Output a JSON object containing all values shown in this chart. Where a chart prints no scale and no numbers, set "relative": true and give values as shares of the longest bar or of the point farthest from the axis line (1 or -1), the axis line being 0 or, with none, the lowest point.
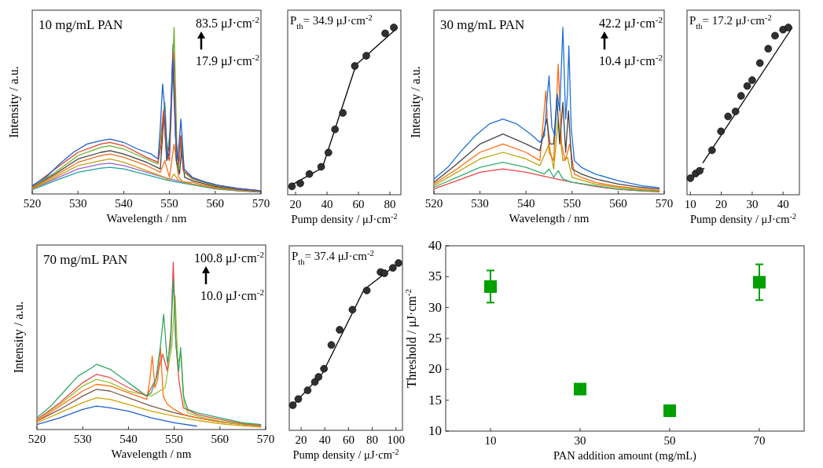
{
  "chart_data": [
    {
      "type": "line",
      "relative": true,
      "tick_labels": "x",
      "xlabel": "Wavelength / nm",
      "ylabel": "Intensity / a.u.",
      "xlim": [
        520,
        570
      ],
      "xticks": [
        520,
        530,
        540,
        550,
        560,
        570
      ],
      "annotations": [
        "10 mg/mL PAN",
        "83.5 μJ·cm$^{-2}$",
        "17.9 μJ·cm$^{-2}$"
      ],
      "series": [
        {
          "color": "#20a0a0",
          "x": [
            520,
            525,
            530,
            535,
            537,
            540,
            545,
            550,
            555,
            560,
            565,
            570
          ],
          "values": [
            0.025,
            0.08,
            0.13,
            0.155,
            0.16,
            0.15,
            0.115,
            0.08,
            0.055,
            0.03,
            0.018,
            0.01
          ]
        },
        {
          "color": "#a060d0",
          "x": [
            520,
            525,
            530,
            535,
            537,
            540,
            545,
            550,
            555,
            560,
            565,
            570
          ],
          "values": [
            0.03,
            0.09,
            0.15,
            0.18,
            0.185,
            0.17,
            0.13,
            0.09,
            0.06,
            0.035,
            0.02,
            0.012
          ]
        },
        {
          "color": "#c0a010",
          "x": [
            520,
            525,
            530,
            535,
            537,
            540,
            545,
            549,
            550,
            551,
            552,
            555,
            560,
            565,
            570
          ],
          "values": [
            0.03,
            0.1,
            0.17,
            0.2,
            0.21,
            0.19,
            0.14,
            0.1,
            0.08,
            0.12,
            0.08,
            0.06,
            0.035,
            0.022,
            0.013
          ]
        },
        {
          "color": "#f07020",
          "x": [
            520,
            525,
            530,
            535,
            537,
            540,
            545,
            548,
            549,
            550,
            551,
            552,
            553,
            555,
            560,
            565,
            570
          ],
          "values": [
            0.035,
            0.11,
            0.19,
            0.23,
            0.24,
            0.22,
            0.17,
            0.13,
            0.2,
            0.1,
            0.3,
            0.1,
            0.07,
            0.07,
            0.04,
            0.025,
            0.015
          ]
        },
        {
          "color": "#404040",
          "x": [
            520,
            525,
            530,
            535,
            537,
            540,
            545,
            548,
            548.8,
            549.4,
            550,
            550.8,
            551.5,
            552.2,
            552.7,
            553.3,
            555,
            560,
            565,
            570
          ],
          "values": [
            0.04,
            0.12,
            0.21,
            0.25,
            0.26,
            0.24,
            0.19,
            0.15,
            0.48,
            0.2,
            0.25,
            0.9,
            0.2,
            0.12,
            0.28,
            0.1,
            0.08,
            0.045,
            0.028,
            0.016
          ]
        },
        {
          "color": "#6ab023",
          "x": [
            520,
            525,
            530,
            535,
            537,
            540,
            545,
            547.5,
            548.5,
            549,
            549.5,
            550.3,
            551,
            551.6,
            552,
            552.6,
            553.2,
            555,
            560,
            565,
            570
          ],
          "values": [
            0.04,
            0.13,
            0.23,
            0.28,
            0.29,
            0.27,
            0.21,
            0.18,
            0.45,
            0.55,
            0.25,
            0.4,
            1,
            0.3,
            0.15,
            0.35,
            0.13,
            0.09,
            0.05,
            0.03,
            0.017
          ]
        },
        {
          "color": "#e03c31",
          "x": [
            520,
            525,
            530,
            535,
            537,
            540,
            545,
            547.5,
            548.2,
            548.7,
            549.3,
            550,
            550.8,
            551.5,
            552,
            552.4,
            553,
            555,
            560,
            565,
            570
          ],
          "values": [
            0.045,
            0.15,
            0.25,
            0.3,
            0.31,
            0.29,
            0.22,
            0.19,
            0.3,
            0.5,
            0.25,
            0.2,
            0.85,
            0.3,
            0.18,
            0.35,
            0.14,
            0.095,
            0.055,
            0.032,
            0.018
          ]
        },
        {
          "color": "#1f5fd0",
          "x": [
            520,
            523,
            526,
            529,
            532,
            535,
            537,
            540,
            543,
            546,
            547.5,
            548,
            548.5,
            549,
            549.5,
            550,
            550.7,
            551.3,
            551.8,
            552.5,
            553.2,
            555,
            558,
            561,
            565,
            570
          ],
          "values": [
            0.05,
            0.1,
            0.18,
            0.25,
            0.3,
            0.32,
            0.33,
            0.31,
            0.27,
            0.24,
            0.21,
            0.4,
            0.66,
            0.5,
            0.22,
            0.3,
            0.81,
            0.35,
            0.2,
            0.45,
            0.15,
            0.1,
            0.07,
            0.05,
            0.034,
            0.019
          ]
        }
      ]
    },
    {
      "type": "scatter",
      "relative": true,
      "tick_labels": "x",
      "xlabel": "Pump density / μJ·cm$^{-2}$",
      "xlim": [
        15,
        87
      ],
      "xticks": [
        20,
        40,
        60,
        80
      ],
      "annotations": [
        "P$_{th}$= 34.9 μJ·cm$^{-2}$"
      ],
      "series": [
        {
          "type": "line",
          "color": "#000000",
          "x": [
            17,
            37,
            58.5,
            85
          ],
          "values": [
            0.056,
            0.161,
            0.777,
            1
          ]
        },
        {
          "color": "#303030",
          "marker": "circle",
          "x": [
            17.7,
            23,
            28.8,
            36.3,
            40.9,
            45.1,
            50.1,
            57.7,
            65,
            77,
            82.5
          ],
          "values": [
            0.05,
            0.068,
            0.124,
            0.167,
            0.252,
            0.391,
            0.489,
            0.77,
            0.831,
            0.965,
            1
          ]
        }
      ]
    },
    {
      "type": "line",
      "relative": true,
      "tick_labels": "x",
      "xlabel": "Wavelength / nm",
      "ylabel": "Intensity / a.u.",
      "xlim": [
        520,
        570
      ],
      "xticks": [
        520,
        530,
        540,
        550,
        560,
        570
      ],
      "annotations": [
        "30 mg/mL PAN",
        "42.2 μJ·cm$^{-2}$",
        "10.4 μJ·cm$^{-2}$"
      ],
      "series": [
        {
          "color": "#e84545",
          "x": [
            520,
            525,
            530,
            535,
            540,
            545,
            550,
            555,
            560,
            565,
            569
          ],
          "values": [
            0.03,
            0.08,
            0.13,
            0.15,
            0.13,
            0.1,
            0.07,
            0.045,
            0.028,
            0.018,
            0.012
          ]
        },
        {
          "color": "#30b070",
          "x": [
            520,
            525,
            530,
            535,
            540,
            544,
            545,
            546,
            547,
            548,
            550,
            555,
            560,
            565,
            569
          ],
          "values": [
            0.04,
            0.1,
            0.16,
            0.19,
            0.16,
            0.12,
            0.15,
            0.1,
            0.14,
            0.09,
            0.07,
            0.05,
            0.03,
            0.02,
            0.015
          ]
        },
        {
          "color": "#b8a000",
          "x": [
            520,
            525,
            530,
            535,
            540,
            543,
            545,
            546,
            547,
            548,
            549,
            550,
            555,
            560,
            565,
            569
          ],
          "values": [
            0.05,
            0.13,
            0.21,
            0.25,
            0.21,
            0.17,
            0.3,
            0.15,
            0.45,
            0.2,
            0.22,
            0.1,
            0.06,
            0.04,
            0.025,
            0.018
          ]
        },
        {
          "color": "#ff6a10",
          "x": [
            520,
            525,
            530,
            535,
            540,
            543,
            544.3,
            545,
            546,
            547,
            547.7,
            548.5,
            549.5,
            550.5,
            552,
            555,
            560,
            565,
            569
          ],
          "values": [
            0.06,
            0.15,
            0.25,
            0.3,
            0.25,
            0.2,
            0.62,
            0.25,
            0.2,
            0.78,
            0.3,
            0.2,
            0.3,
            0.12,
            0.1,
            0.07,
            0.045,
            0.03,
            0.022
          ]
        },
        {
          "color": "#454545",
          "x": [
            520,
            525,
            530,
            535,
            540,
            543,
            544.5,
            545.2,
            546,
            546.7,
            547.3,
            548,
            548.6,
            549.2,
            550,
            552,
            555,
            560,
            565,
            569
          ],
          "values": [
            0.07,
            0.18,
            0.3,
            0.36,
            0.3,
            0.26,
            0.45,
            0.3,
            0.3,
            0.58,
            0.3,
            0.55,
            0.25,
            0.5,
            0.15,
            0.12,
            0.09,
            0.06,
            0.04,
            0.03
          ]
        },
        {
          "color": "#1f6fd8",
          "x": [
            520,
            523,
            526,
            529,
            532,
            535,
            538,
            541,
            543,
            544,
            544.5,
            545,
            545.6,
            546.3,
            546.8,
            547.3,
            548,
            548.6,
            549,
            549.3,
            549.8,
            550.5,
            552,
            555,
            560,
            565,
            569
          ],
          "values": [
            0.09,
            0.16,
            0.26,
            0.35,
            0.42,
            0.45,
            0.42,
            0.36,
            0.31,
            0.35,
            0.55,
            0.71,
            0.4,
            0.35,
            0.6,
            0.5,
            1,
            0.45,
            0.6,
            0.89,
            0.4,
            0.2,
            0.16,
            0.12,
            0.08,
            0.05,
            0.037
          ]
        }
      ]
    },
    {
      "type": "scatter",
      "relative": true,
      "tick_labels": "x",
      "xlabel": "Pump density / μJ·cm$^{-2}$",
      "xlim": [
        8.9,
        45.3
      ],
      "xticks": [
        10,
        20,
        30,
        40
      ],
      "annotations": [
        "P$_{th}$= 17.2 μJ·cm$^{-2}$"
      ],
      "series": [
        {
          "type": "line",
          "color": "#000000",
          "x": [
            10.5,
            14.5
          ],
          "values": [
            0.1,
            0.16
          ]
        },
        {
          "type": "line",
          "color": "#000000",
          "x": [
            14,
            43
          ],
          "values": [
            0.19,
            1
          ]
        },
        {
          "color": "#303030",
          "marker": "circle",
          "x": [
            10,
            11.7,
            13,
            17,
            19.9,
            22.2,
            24.6,
            26.4,
            28.4,
            30,
            32.5,
            35.2,
            37.4,
            40,
            41.7
          ],
          "values": [
            0.099,
            0.127,
            0.143,
            0.266,
            0.379,
            0.468,
            0.498,
            0.591,
            0.65,
            0.685,
            0.787,
            0.873,
            0.951,
            0.987,
            1
          ]
        }
      ]
    },
    {
      "type": "line",
      "relative": true,
      "tick_labels": "x",
      "xlabel": "Wavelength / nm",
      "ylabel": "Intensity / a.u.",
      "xlim": [
        520,
        570
      ],
      "xticks": [
        520,
        530,
        540,
        550,
        560,
        570
      ],
      "annotations": [
        "70 mg/mL PAN",
        "100.8 μJ·cm$^{-2}$",
        "10.0 μJ·cm$^{-2}$"
      ],
      "series": [
        {
          "color": "#2060d0",
          "x": [
            520,
            525,
            530,
            533,
            536,
            540,
            545,
            550,
            555
          ],
          "values": [
            0.03,
            0.07,
            0.12,
            0.14,
            0.13,
            0.11,
            0.07,
            0.04,
            0.02
          ]
        },
        {
          "color": "#d0a000",
          "x": [
            520,
            525,
            530,
            533,
            536,
            540,
            545,
            550,
            555,
            560,
            565,
            569
          ],
          "values": [
            0.04,
            0.1,
            0.16,
            0.19,
            0.18,
            0.15,
            0.11,
            0.08,
            0.055,
            0.035,
            0.022,
            0.015
          ]
        },
        {
          "color": "#7a5a50",
          "x": [
            520,
            525,
            530,
            533,
            536,
            540,
            545,
            550,
            555,
            560,
            565,
            569
          ],
          "values": [
            0.05,
            0.12,
            0.2,
            0.24,
            0.23,
            0.19,
            0.14,
            0.1,
            0.07,
            0.045,
            0.03,
            0.02
          ]
        },
        {
          "color": "#ff7010",
          "x": [
            520,
            525,
            530,
            533,
            536,
            540,
            544,
            544.7,
            545.2,
            545.8,
            546.4,
            547,
            547.6,
            548.5,
            550,
            552,
            555,
            560,
            565,
            569
          ],
          "values": [
            0.05,
            0.14,
            0.23,
            0.27,
            0.26,
            0.22,
            0.18,
            0.3,
            0.44,
            0.25,
            0.3,
            0.49,
            0.2,
            0.15,
            0.12,
            0.09,
            0.07,
            0.045,
            0.03,
            0.02
          ]
        },
        {
          "color": "#9cc030",
          "x": [
            520,
            525,
            530,
            533,
            536,
            540,
            545,
            548,
            549.5,
            550.2,
            550.8,
            551.5,
            552.2,
            553,
            555,
            560,
            565,
            569
          ],
          "values": [
            0.06,
            0.15,
            0.26,
            0.3,
            0.28,
            0.23,
            0.2,
            0.25,
            0.5,
            0.8,
            0.4,
            0.45,
            0.15,
            0.1,
            0.08,
            0.05,
            0.03,
            0.022
          ]
        },
        {
          "color": "#e84a4a",
          "x": [
            520,
            525,
            530,
            533,
            536,
            540,
            544,
            546,
            547.5,
            548.5,
            549.3,
            549.8,
            550.3,
            551,
            552,
            555,
            560,
            565,
            569
          ],
          "values": [
            0.06,
            0.16,
            0.28,
            0.33,
            0.31,
            0.25,
            0.2,
            0.3,
            0.45,
            0.35,
            0.6,
            1,
            0.55,
            0.3,
            0.13,
            0.09,
            0.06,
            0.035,
            0.025
          ]
        },
        {
          "color": "#2fa860",
          "x": [
            520,
            523,
            526,
            529,
            532,
            533,
            536,
            539,
            542,
            544,
            545,
            546,
            547,
            547.7,
            548.5,
            549.2,
            549.8,
            550.4,
            551,
            551.4,
            552,
            553,
            555,
            560,
            565,
            569
          ],
          "values": [
            0.07,
            0.14,
            0.23,
            0.32,
            0.37,
            0.39,
            0.36,
            0.3,
            0.24,
            0.2,
            0.22,
            0.3,
            0.5,
            0.69,
            0.4,
            0.5,
            0.9,
            0.5,
            0.35,
            0.49,
            0.2,
            0.12,
            0.1,
            0.07,
            0.04,
            0.03
          ]
        }
      ]
    },
    {
      "type": "scatter",
      "relative": true,
      "tick_labels": "x",
      "xlabel": "Pump density / μJ·cm$^{-2}$",
      "xlim": [
        10,
        105.5
      ],
      "xticks": [
        20,
        40,
        60,
        80,
        100
      ],
      "annotations": [
        "P$_{th}$= 37.4 μJ·cm$^{-2}$"
      ],
      "series": [
        {
          "type": "line",
          "color": "#000000",
          "x": [
            13,
            38,
            73,
            102
          ],
          "values": [
            0.15,
            0.34,
            0.84,
            1
          ]
        },
        {
          "color": "#303030",
          "marker": "circle",
          "x": [
            13,
            17.6,
            25.5,
            31.6,
            34.7,
            39.3,
            45.5,
            52.5,
            63.3,
            75.4,
            87,
            90.3,
            97.4,
            102.2
          ],
          "values": [
            0.15,
            0.187,
            0.239,
            0.289,
            0.319,
            0.368,
            0.51,
            0.601,
            0.721,
            0.836,
            0.946,
            0.939,
            0.971,
            1
          ]
        }
      ]
    },
    {
      "type": "scatter",
      "xlabel": "PAN addition amount (mg/mL)",
      "ylabel": "Threshold / μJ·cm$^{-2}$",
      "xlim": [
        0,
        80
      ],
      "xticks": [
        10,
        30,
        50,
        70
      ],
      "ylim": [
        10,
        40
      ],
      "yticks": [
        10,
        15,
        20,
        25,
        30,
        35,
        40
      ],
      "marker": "square",
      "color": "#00a000",
      "x": [
        10,
        30,
        50,
        70
      ],
      "values": [
        33.4,
        16.8,
        13.3,
        34.1
      ],
      "errors": [
        2.6,
        null,
        null,
        2.9
      ]
    }
  ]
}
